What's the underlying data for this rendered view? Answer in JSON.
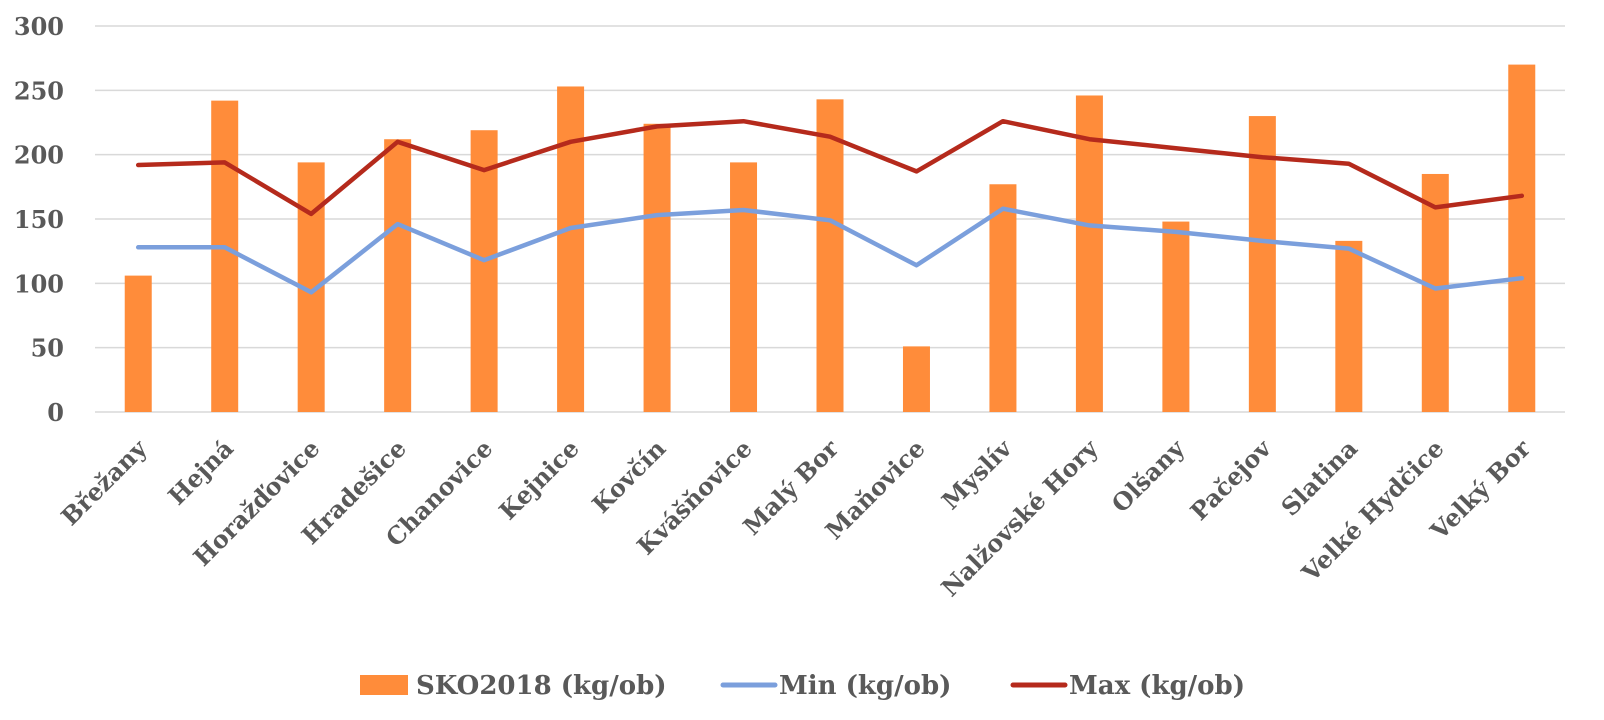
{
  "chart_data": {
    "type": "bar",
    "categories": [
      "Břežany",
      "Hejná",
      "Horažďovice",
      "Hradešice",
      "Chanovice",
      "Kejnice",
      "Kovčín",
      "Kvášňovice",
      "Malý Bor",
      "Maňovice",
      "Myslív",
      "Nalžovské Hory",
      "Olšany",
      "Pačejov",
      "Slatina",
      "Velké Hydčice",
      "Velký Bor"
    ],
    "series": [
      {
        "name": "SKO2018 (kg/ob)",
        "type": "bar",
        "color": "#FF8C3A",
        "values": [
          106,
          242,
          194,
          212,
          219,
          253,
          224,
          194,
          243,
          51,
          177,
          246,
          148,
          230,
          133,
          185,
          270
        ]
      },
      {
        "name": "Min (kg/ob)",
        "type": "line",
        "color": "#7B9FDC",
        "values": [
          128,
          128,
          93,
          146,
          118,
          143,
          153,
          157,
          149,
          114,
          158,
          145,
          140,
          133,
          127,
          96,
          104
        ]
      },
      {
        "name": "Max (kg/ob)",
        "type": "line",
        "color": "#B52A1C",
        "values": [
          192,
          194,
          154,
          210,
          188,
          210,
          222,
          226,
          214,
          187,
          226,
          212,
          205,
          198,
          193,
          159,
          168
        ]
      }
    ],
    "y_ticks": [
      "0",
      "50",
      "100",
      "150",
      "200",
      "250",
      "300"
    ],
    "ylim": [
      0,
      300
    ],
    "grid": true,
    "legend_position": "bottom",
    "title": "",
    "xlabel": "",
    "ylabel": ""
  }
}
